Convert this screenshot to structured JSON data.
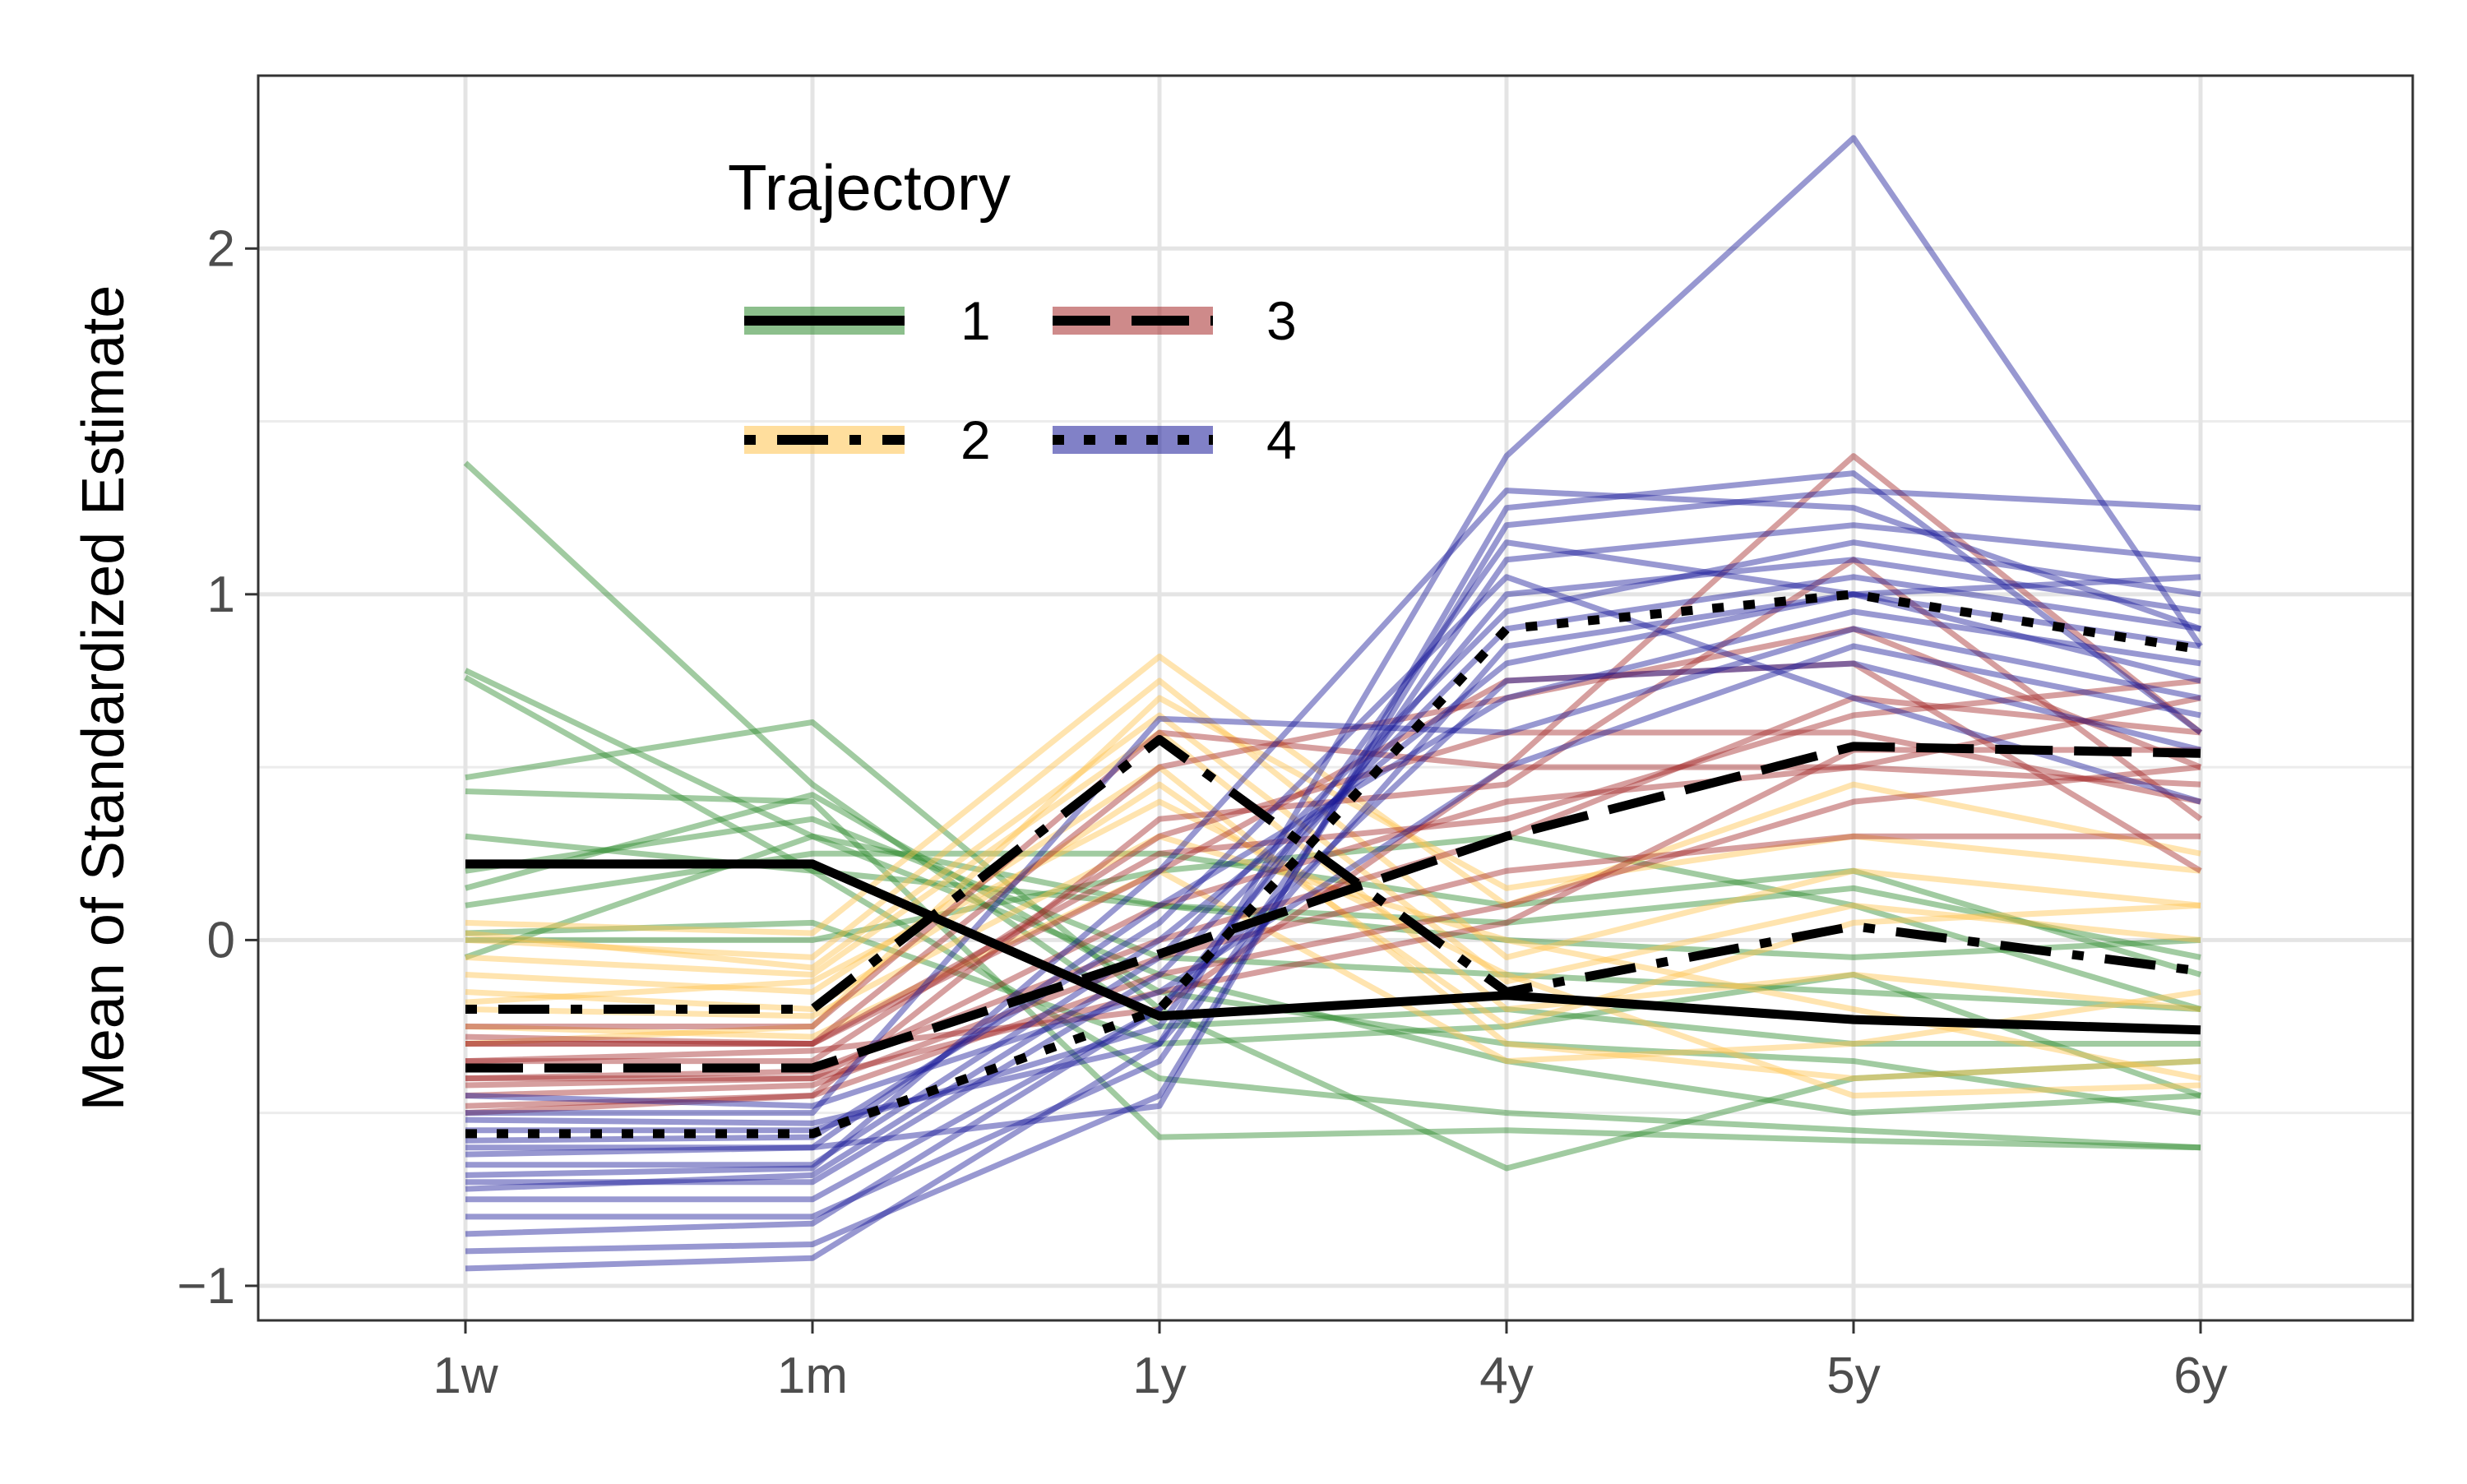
{
  "chart_data": {
    "type": "line",
    "title": "",
    "xlabel": "",
    "ylabel": "Mean of Standardized Estimate",
    "categories": [
      "1w",
      "1m",
      "1y",
      "4y",
      "5y",
      "6y"
    ],
    "ylim": [
      -1.1,
      2.5
    ],
    "yticks": [
      -1,
      0,
      1,
      2
    ],
    "grid": true,
    "legend": {
      "title": "Trajectory",
      "position": "top-left",
      "entries": [
        {
          "label": "1",
          "color": "#2e8b2e",
          "dash": "solid"
        },
        {
          "label": "2",
          "color": "#ffc34d",
          "dash": "dotdash"
        },
        {
          "label": "3",
          "color": "#a52a2a",
          "dash": "longdash"
        },
        {
          "label": "4",
          "color": "#1a1a99",
          "dash": "dotted"
        }
      ]
    },
    "series": [
      {
        "name": "1",
        "values": [
          0.22,
          0.22,
          -0.22,
          -0.16,
          -0.23,
          -0.26
        ]
      },
      {
        "name": "2",
        "values": [
          -0.2,
          -0.2,
          0.58,
          -0.15,
          0.04,
          -0.09
        ]
      },
      {
        "name": "3",
        "values": [
          -0.37,
          -0.37,
          -0.04,
          0.3,
          0.56,
          0.54
        ]
      },
      {
        "name": "4",
        "values": [
          -0.56,
          -0.56,
          -0.2,
          0.9,
          1.0,
          0.84
        ]
      }
    ],
    "individual_lines": {
      "1": [
        [
          1.38,
          0.45,
          -0.25,
          -0.2,
          -0.3,
          -0.3
        ],
        [
          0.78,
          0.3,
          -0.1,
          -0.35,
          -0.5,
          -0.45
        ],
        [
          0.76,
          0.2,
          -0.4,
          -0.5,
          -0.55,
          -0.6
        ],
        [
          0.47,
          0.63,
          -0.2,
          -0.66,
          -0.4,
          -0.35
        ],
        [
          0.43,
          0.4,
          -0.57,
          -0.55,
          -0.58,
          -0.6
        ],
        [
          0.3,
          0.2,
          0.1,
          0.05,
          0.15,
          -0.05
        ],
        [
          0.2,
          0.35,
          -0.05,
          -0.1,
          -0.15,
          -0.2
        ],
        [
          0.1,
          0.25,
          0.25,
          0.1,
          0.2,
          -0.1
        ],
        [
          0.02,
          0.05,
          -0.3,
          -0.25,
          -0.1,
          -0.45
        ],
        [
          0.0,
          0.0,
          0.2,
          0.3,
          0.1,
          -0.2
        ],
        [
          -0.05,
          0.3,
          0.1,
          0.0,
          -0.05,
          0.0
        ],
        [
          0.15,
          0.42,
          -0.15,
          -0.3,
          -0.35,
          -0.5
        ]
      ],
      "2": [
        [
          0.05,
          0.02,
          0.82,
          0.1,
          0.45,
          0.25
        ],
        [
          0.0,
          -0.05,
          0.75,
          -0.05,
          0.2,
          0.1
        ],
        [
          -0.05,
          -0.1,
          0.6,
          -0.2,
          -0.1,
          -0.2
        ],
        [
          -0.1,
          -0.15,
          0.5,
          -0.3,
          -0.4,
          -0.35
        ],
        [
          -0.15,
          -0.2,
          0.45,
          -0.25,
          0.05,
          0.1
        ],
        [
          -0.2,
          -0.22,
          0.3,
          0.0,
          -0.2,
          -0.4
        ],
        [
          -0.25,
          -0.28,
          0.2,
          -0.35,
          -0.3,
          -0.15
        ],
        [
          -0.3,
          -0.25,
          0.7,
          0.15,
          0.3,
          0.2
        ],
        [
          -0.18,
          -0.12,
          0.4,
          -0.1,
          -0.45,
          -0.42
        ],
        [
          0.02,
          -0.08,
          0.65,
          -0.12,
          0.1,
          0.0
        ]
      ],
      "3": [
        [
          -0.25,
          -0.25,
          0.6,
          0.5,
          1.4,
          0.6
        ],
        [
          -0.3,
          -0.3,
          0.5,
          0.7,
          0.9,
          0.5
        ],
        [
          -0.35,
          -0.35,
          0.3,
          0.6,
          0.6,
          0.4
        ],
        [
          -0.4,
          -0.4,
          0.1,
          0.4,
          0.5,
          0.7
        ],
        [
          -0.45,
          -0.42,
          -0.05,
          0.2,
          0.3,
          0.3
        ],
        [
          -0.5,
          -0.45,
          -0.1,
          0.1,
          0.4,
          0.5
        ],
        [
          -0.3,
          -0.3,
          0.2,
          0.75,
          0.8,
          0.2
        ],
        [
          -0.4,
          -0.38,
          0.0,
          0.3,
          0.7,
          0.6
        ],
        [
          -0.35,
          -0.32,
          -0.2,
          0.5,
          0.5,
          0.45
        ],
        [
          -0.28,
          -0.3,
          0.25,
          0.35,
          0.65,
          0.75
        ],
        [
          -0.42,
          -0.4,
          -0.15,
          0.05,
          0.55,
          0.55
        ],
        [
          -0.48,
          -0.45,
          0.35,
          0.45,
          1.1,
          0.35
        ]
      ],
      "4": [
        [
          -0.95,
          -0.92,
          -0.3,
          1.4,
          2.32,
          0.85
        ],
        [
          -0.9,
          -0.88,
          -0.45,
          1.2,
          1.3,
          1.25
        ],
        [
          -0.8,
          -0.8,
          -0.35,
          1.1,
          1.2,
          1.1
        ],
        [
          -0.75,
          -0.75,
          -0.2,
          1.0,
          1.1,
          0.95
        ],
        [
          -0.7,
          -0.7,
          -0.1,
          0.9,
          1.05,
          0.9
        ],
        [
          -0.65,
          -0.65,
          0.0,
          0.8,
          1.0,
          0.85
        ],
        [
          -0.6,
          -0.6,
          0.1,
          0.7,
          0.95,
          0.8
        ],
        [
          -0.55,
          -0.55,
          -0.25,
          1.15,
          1.0,
          0.75
        ],
        [
          -0.5,
          -0.5,
          0.64,
          0.6,
          0.9,
          0.7
        ],
        [
          -0.45,
          -0.48,
          -0.15,
          0.5,
          0.85,
          0.65
        ],
        [
          -0.62,
          -0.6,
          -0.48,
          1.25,
          1.35,
          0.6
        ],
        [
          -0.72,
          -0.68,
          -0.05,
          0.95,
          1.15,
          1.0
        ],
        [
          -0.58,
          -0.57,
          0.05,
          1.05,
          0.7,
          0.4
        ],
        [
          -0.52,
          -0.53,
          -0.3,
          0.85,
          1.0,
          1.05
        ],
        [
          -0.68,
          -0.66,
          0.2,
          1.3,
          1.25,
          0.9
        ],
        [
          -0.85,
          -0.82,
          -0.2,
          0.75,
          0.8,
          0.55
        ]
      ]
    }
  }
}
